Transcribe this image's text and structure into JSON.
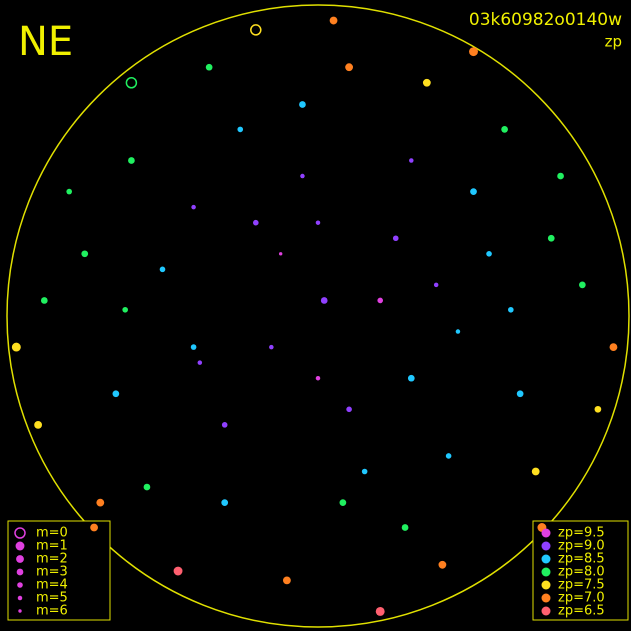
{
  "chart_data": {
    "type": "scatter",
    "title": "NE",
    "subtitle": "03k60982o0140w",
    "color_label": "zp",
    "xlim": [
      -1,
      1
    ],
    "ylim": [
      -1,
      1
    ],
    "size_legend": [
      {
        "label": "m=0",
        "value": 0
      },
      {
        "label": "m=1",
        "value": 1
      },
      {
        "label": "m=2",
        "value": 2
      },
      {
        "label": "m=3",
        "value": 3
      },
      {
        "label": "m=4",
        "value": 4
      },
      {
        "label": "m=5",
        "value": 5
      },
      {
        "label": "m=6",
        "value": 6
      }
    ],
    "color_legend": [
      {
        "label": "zp=9.5",
        "value": 9.5,
        "color": "#e040e0"
      },
      {
        "label": "zp=9.0",
        "value": 9.0,
        "color": "#9040ff"
      },
      {
        "label": "zp=8.5",
        "value": 8.5,
        "color": "#20c8ff"
      },
      {
        "label": "zp=8.0",
        "value": 8.0,
        "color": "#20f060"
      },
      {
        "label": "zp=7.5",
        "value": 7.5,
        "color": "#ffe020"
      },
      {
        "label": "zp=7.0",
        "value": 7.0,
        "color": "#ff8020"
      },
      {
        "label": "zp=6.5",
        "value": 6.5,
        "color": "#ff6070"
      }
    ],
    "x": [
      0.02,
      -0.2,
      0.3,
      -0.4,
      0.5,
      -0.6,
      0.7,
      -0.7,
      0.1,
      -0.1,
      0.85,
      -0.88,
      0.25,
      -0.3,
      0.45,
      -0.05,
      0.15,
      -0.5,
      0.6,
      -0.55,
      0.35,
      -0.35,
      0.4,
      -0.45,
      0.9,
      -0.9,
      0.78,
      -0.8,
      0.0,
      0.2,
      -0.15,
      0.55,
      -0.25,
      0.1,
      -0.65,
      0.65,
      0.05,
      0.2,
      -0.2,
      0.5,
      -0.6,
      0.72,
      -0.72,
      0.95,
      -0.97,
      0.3,
      -0.4,
      0.42,
      -0.12,
      0.08,
      -0.3,
      0.75,
      -0.75,
      0.28,
      -0.05,
      0.62,
      -0.62,
      0.0,
      0.38,
      -0.38
    ],
    "y": [
      0.05,
      0.3,
      -0.2,
      -0.1,
      0.4,
      0.5,
      -0.5,
      -0.6,
      0.8,
      -0.85,
      0.1,
      0.05,
      0.25,
      -0.35,
      -0.05,
      0.45,
      -0.5,
      0.15,
      0.6,
      -0.55,
      0.75,
      0.8,
      -0.8,
      -0.82,
      -0.3,
      -0.35,
      0.45,
      0.4,
      -0.2,
      0.05,
      -0.1,
      0.2,
      0.6,
      -0.3,
      -0.25,
      -0.25,
      0.95,
      -0.95,
      0.92,
      0.85,
      0.75,
      -0.68,
      -0.68,
      -0.1,
      -0.1,
      0.5,
      0.35,
      -0.45,
      0.2,
      -0.6,
      -0.6,
      0.25,
      0.2,
      -0.68,
      0.68,
      0.02,
      0.02,
      0.3,
      0.1,
      -0.15
    ],
    "m": [
      3,
      4,
      3,
      4,
      3,
      3,
      2,
      2,
      2,
      2,
      3,
      3,
      4,
      4,
      5,
      5,
      4,
      4,
      3,
      3,
      2,
      3,
      2,
      1,
      3,
      2,
      3,
      4,
      5,
      4,
      5,
      4,
      4,
      4,
      3,
      3,
      2,
      1,
      0,
      1,
      0,
      1,
      2,
      2,
      1,
      5,
      5,
      4,
      6,
      3,
      3,
      3,
      3,
      3,
      3,
      4,
      4,
      5,
      5,
      5
    ],
    "zp": [
      9.0,
      9.0,
      8.5,
      8.5,
      8.5,
      8.0,
      7.5,
      7.0,
      7.0,
      7.0,
      8.0,
      8.0,
      9.0,
      9.0,
      8.5,
      9.0,
      8.5,
      8.5,
      8.0,
      8.0,
      7.5,
      8.0,
      7.0,
      6.5,
      7.5,
      7.5,
      8.0,
      8.0,
      9.5,
      9.5,
      9.0,
      8.5,
      8.5,
      9.0,
      8.5,
      8.5,
      7.0,
      6.5,
      7.5,
      7.0,
      8.0,
      7.0,
      7.0,
      7.0,
      7.5,
      9.0,
      9.0,
      8.5,
      9.5,
      8.0,
      8.5,
      8.0,
      8.0,
      8.0,
      8.5,
      8.5,
      8.0,
      9.0,
      9.0,
      9.0
    ]
  }
}
